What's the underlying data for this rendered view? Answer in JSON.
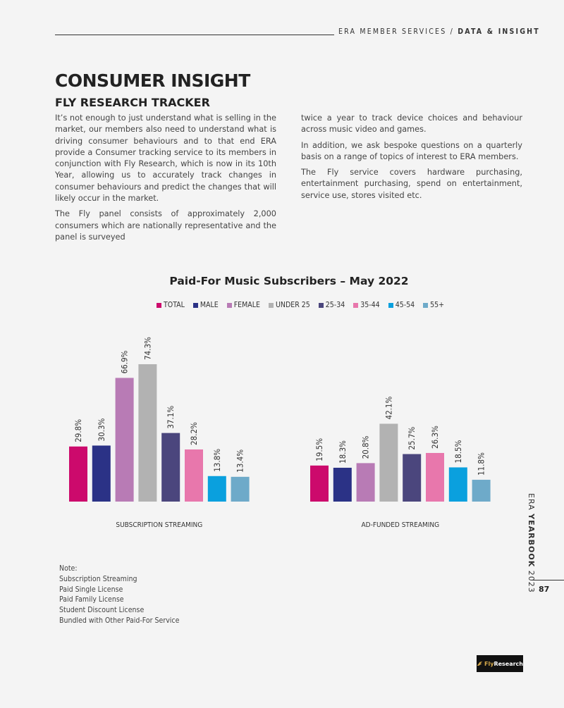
{
  "header": {
    "section": "ERA MEMBER SERVICES /",
    "subsection": "DATA & INSIGHT"
  },
  "title": "CONSUMER INSIGHT",
  "subtitle": "FLY RESEARCH TRACKER",
  "body": {
    "col1": [
      "It’s not enough to just understand what is selling in the market, our members also need to understand what is driving consumer behaviours and to that end ERA provide a Consumer tracking service to its members in conjunction with Fly Research, which is now in its 10th Year, allowing us to accurately track changes in consumer behaviours and predict the changes that will likely occur in the market.",
      "The Fly panel consists of approximately 2,000 consumers which are nationally representative and the panel is surveyed"
    ],
    "col2": [
      "twice a year to track device choices and behaviour across music video and games.",
      "In addition, we ask bespoke questions on a quarterly basis on a range of topics of interest to ERA members.",
      "The Fly service covers hardware purchasing, entertainment purchasing, spend on entertainment, service use, stores visited etc."
    ]
  },
  "chart_data": {
    "type": "bar",
    "title": "Paid-For Music Subscribers – May 2022",
    "categories": [
      "SUBSCRIPTION STREAMING",
      "AD-FUNDED STREAMING"
    ],
    "series": [
      {
        "name": "TOTAL",
        "color": "#cc0a6c",
        "values": [
          29.8,
          19.5
        ]
      },
      {
        "name": "MALE",
        "color": "#2b3286",
        "values": [
          30.3,
          18.3
        ]
      },
      {
        "name": "FEMALE",
        "color": "#b87bb5",
        "values": [
          66.9,
          20.8
        ]
      },
      {
        "name": "UNDER 25",
        "color": "#b2b2b2",
        "values": [
          74.3,
          42.1
        ]
      },
      {
        "name": "25-34",
        "color": "#4b467d",
        "values": [
          37.1,
          25.7
        ]
      },
      {
        "name": "35-44",
        "color": "#e877ac",
        "values": [
          28.2,
          26.3
        ]
      },
      {
        "name": "45-54",
        "color": "#0aa0de",
        "values": [
          13.8,
          18.5
        ]
      },
      {
        "name": "55+",
        "color": "#6eaac9",
        "values": [
          13.4,
          11.8
        ]
      }
    ],
    "labels": [
      [
        "29.8%",
        "30.3%",
        "66.9%",
        "74.3%",
        "37.1%",
        "28.2%",
        "13.8%",
        "13.4%"
      ],
      [
        "19.5%",
        "18.3%",
        "20.8%",
        "42.1%",
        "25.7%",
        "26.3%",
        "18.5%",
        "11.8%"
      ]
    ],
    "ylim": [
      0,
      80
    ],
    "xlabel": "",
    "ylabel": "",
    "grid": false,
    "legend": "top-center"
  },
  "note": {
    "heading": "Note:",
    "lines": [
      "Subscription Streaming",
      "Paid Single License",
      "Paid Family License",
      "Student Discount License",
      "Bundled with Other Paid-For Service"
    ]
  },
  "side": {
    "prefix": "ERA ",
    "bold": "YEARBOOK",
    "year": " 2023"
  },
  "page_number": "87",
  "logo": {
    "text_a": "Fly",
    "text_b": "Research"
  }
}
